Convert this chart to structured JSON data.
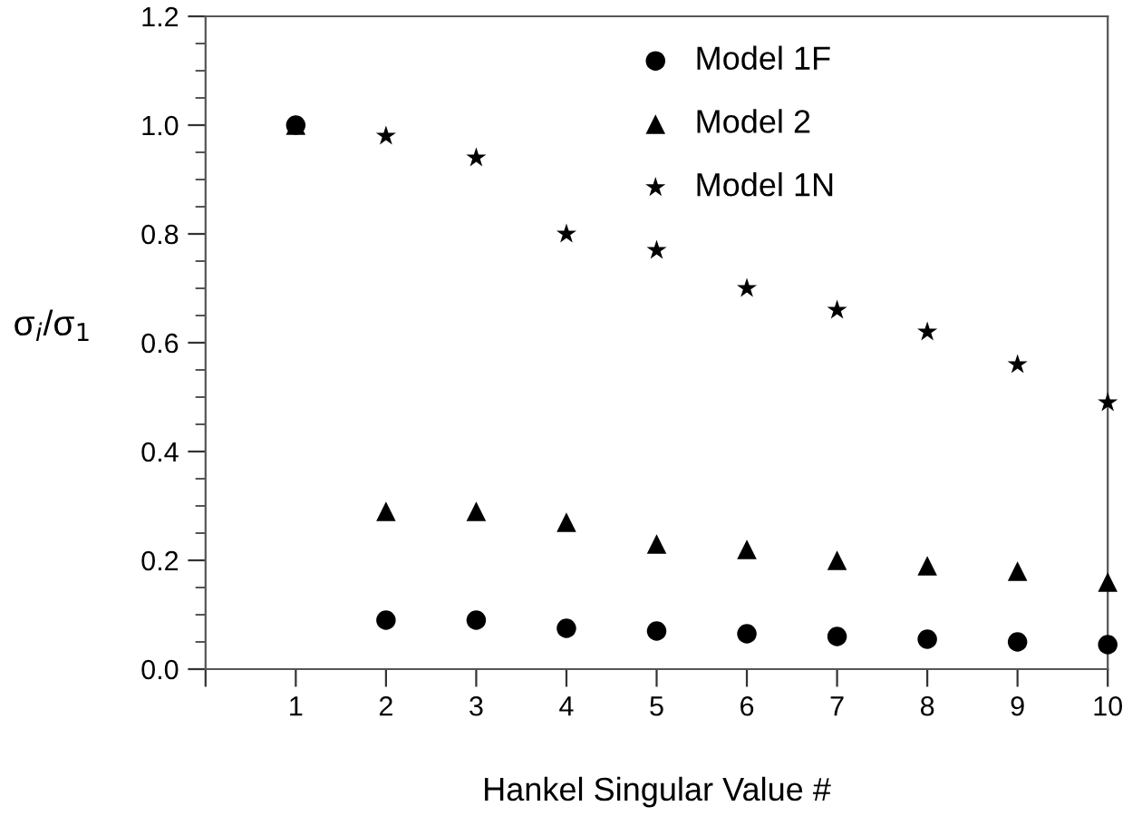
{
  "chart_data": {
    "type": "scatter",
    "xlabel": "Hankel Singular Value #",
    "ylabel": "σ$_{i}$/σ$_{1}$",
    "x": [
      1,
      2,
      3,
      4,
      5,
      6,
      7,
      8,
      9,
      10
    ],
    "series": [
      {
        "name": "Model 1F",
        "color": "#000000",
        "marker": "circle",
        "values": [
          1.0,
          0.09,
          0.09,
          0.075,
          0.07,
          0.065,
          0.06,
          0.055,
          0.05,
          0.045
        ]
      },
      {
        "name": "Model 2",
        "color": "#000000",
        "marker": "triangle",
        "values": [
          1.0,
          0.29,
          0.29,
          0.27,
          0.23,
          0.22,
          0.2,
          0.19,
          0.18,
          0.16
        ]
      },
      {
        "name": "Model 1N",
        "color": "#000000",
        "marker": "star",
        "values": [
          null,
          0.98,
          0.94,
          0.8,
          0.77,
          0.7,
          0.66,
          0.62,
          0.56,
          0.49
        ]
      }
    ],
    "xlim": [
      0,
      10
    ],
    "ylim": [
      0,
      1.2
    ],
    "xticks": [
      {
        "value": 0,
        "label": null
      },
      1,
      2,
      3,
      4,
      5,
      6,
      7,
      8,
      9,
      10
    ],
    "yticks": [
      {
        "value": 0,
        "label": "0.0"
      },
      0.2,
      0.4,
      0.6,
      0.8,
      {
        "value": 1,
        "label": "1.0"
      },
      1.2
    ],
    "grid": false,
    "legend": "top"
  }
}
